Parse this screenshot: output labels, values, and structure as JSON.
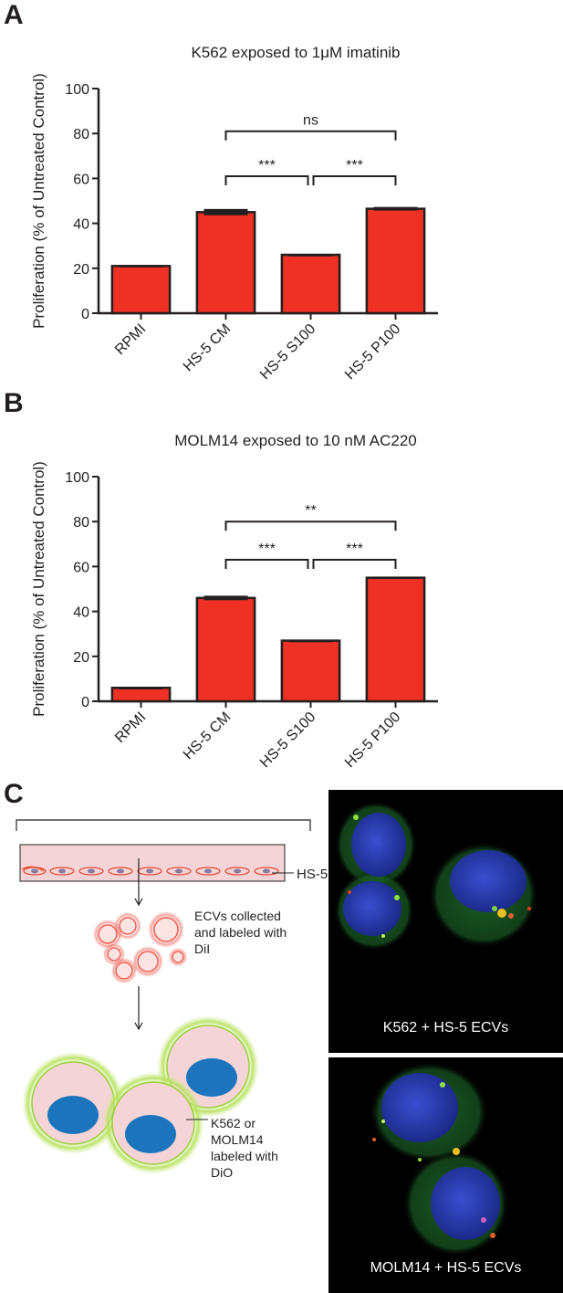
{
  "panels": {
    "a": "A",
    "b": "B",
    "c": "C"
  },
  "chart_data": [
    {
      "type": "bar",
      "title": "K562 exposed to 1μM imatinib",
      "ylabel": "Proliferation (% of Untreated Control)",
      "xlabel": "",
      "categories": [
        "RPMI",
        "HS-5 CM",
        "HS-5 S100",
        "HS-5 P100"
      ],
      "values": [
        21,
        45,
        26,
        46.5
      ],
      "errors": [
        0.4,
        1.4,
        0.3,
        0.8
      ],
      "ylim": [
        0,
        100
      ],
      "yticks": [
        0,
        20,
        40,
        60,
        80,
        100
      ],
      "bar_color": "#ee3124",
      "significance": [
        {
          "from": 1,
          "to": 3,
          "label": "ns",
          "level": 81
        },
        {
          "from": 1,
          "to": 2,
          "label": "***",
          "level": 61
        },
        {
          "from": 2,
          "to": 3,
          "label": "***",
          "level": 61
        }
      ]
    },
    {
      "type": "bar",
      "title": "MOLM14 exposed to 10 nM AC220",
      "ylabel": "Proliferation (% of Untreated Control)",
      "xlabel": "",
      "categories": [
        "RPMI",
        "HS-5 CM",
        "HS-5 S100",
        "HS-5 P100"
      ],
      "values": [
        6,
        46,
        27,
        55
      ],
      "errors": [
        0.3,
        1.0,
        0.3,
        0.5
      ],
      "ylim": [
        0,
        100
      ],
      "yticks": [
        0,
        20,
        40,
        60,
        80,
        100
      ],
      "bar_color": "#ee3124",
      "significance": [
        {
          "from": 1,
          "to": 3,
          "label": "**",
          "level": 80
        },
        {
          "from": 1,
          "to": 2,
          "label": "***",
          "level": 63
        },
        {
          "from": 2,
          "to": 3,
          "label": "***",
          "level": 63
        }
      ]
    }
  ],
  "schematic": {
    "hs5_label": "HS-5",
    "ecv_label_lines": [
      "ECVs collected",
      "and labeled with",
      "DiI"
    ],
    "cell_label_lines": [
      "K562 or",
      "MOLM14",
      "labeled with",
      "DiO"
    ]
  },
  "micrographs": {
    "top_caption": "K562 + HS-5 ECVs",
    "bottom_caption": "MOLM14 + HS-5 ECVs"
  },
  "colors": {
    "bar": "#ee3124",
    "cell_fill": "#f4d4d6",
    "cell_glow": "#b5e15a",
    "nucleus": "#1c75bc",
    "ecv": "#f05a4f"
  }
}
